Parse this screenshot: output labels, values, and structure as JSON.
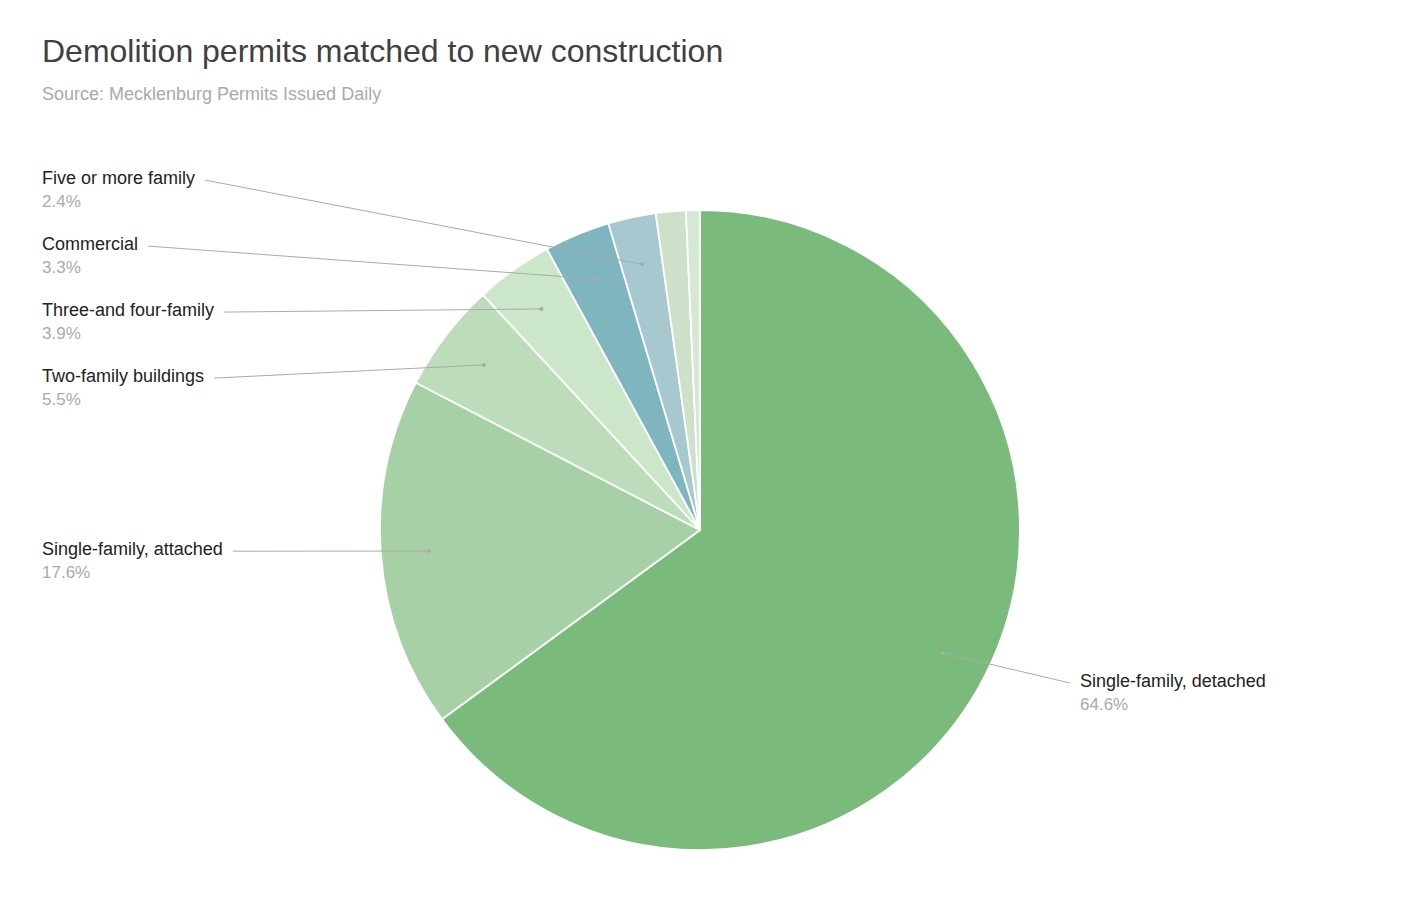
{
  "chart_data": {
    "type": "pie",
    "title": "Demolition permits matched to new construction",
    "subtitle": "Source: Mecklenburg Permits Issued Daily",
    "categories": [
      "Single-family, detached",
      "Single-family, attached",
      "Two-family buildings",
      "Three-and four-family",
      "Commercial",
      "Five or more family",
      null,
      null
    ],
    "values": [
      64.6,
      17.6,
      5.5,
      3.9,
      3.3,
      2.4,
      1.5,
      0.7
    ],
    "value_labels": [
      "64.6%",
      "17.6%",
      "5.5%",
      "3.9%",
      "3.3%",
      "2.4%",
      null,
      null
    ],
    "colors": [
      "#7aba7a",
      "#a8d0a6",
      "#bcdcba",
      "#cce6ca",
      "#7fb5bf",
      "#a8c8d0",
      "#cce0ca",
      "#d5e8d4"
    ],
    "data_labels": true
  }
}
